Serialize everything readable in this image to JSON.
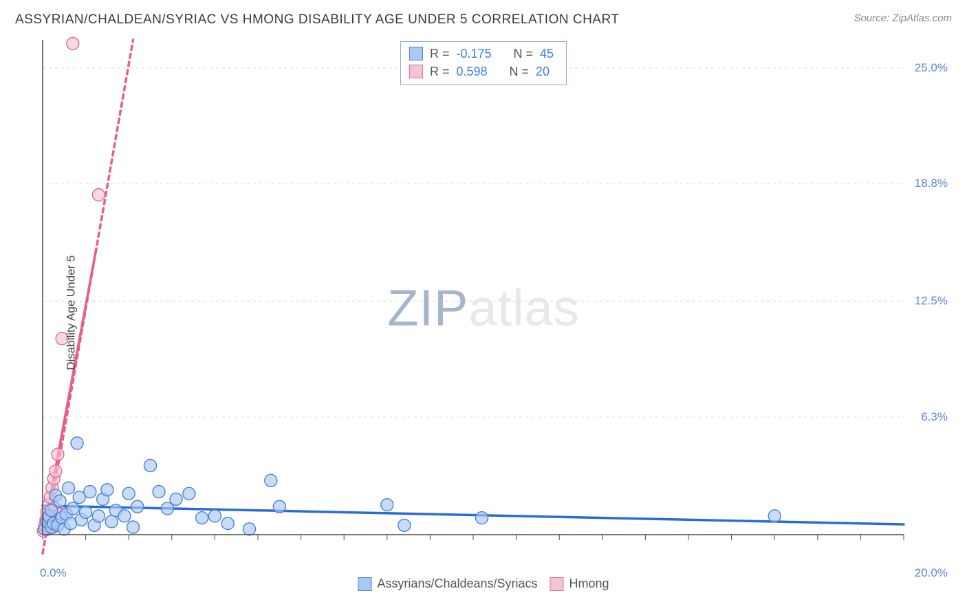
{
  "title": "ASSYRIAN/CHALDEAN/SYRIAC VS HMONG DISABILITY AGE UNDER 5 CORRELATION CHART",
  "source": "Source: ZipAtlas.com",
  "watermark": {
    "part1": "ZIP",
    "part2": "atlas"
  },
  "chart": {
    "type": "scatter",
    "background_color": "#ffffff",
    "grid_color": "#e0e0e0",
    "axis_color": "#4a4a4a",
    "tick_label_color": "#5b88d6",
    "ylabel": "Disability Age Under 5",
    "xlim": [
      0,
      20
    ],
    "ylim": [
      0,
      26.5
    ],
    "yticks": [
      {
        "v": 6.3,
        "label": "6.3%"
      },
      {
        "v": 12.5,
        "label": "12.5%"
      },
      {
        "v": 18.8,
        "label": "18.8%"
      },
      {
        "v": 25.0,
        "label": "25.0%"
      }
    ],
    "x_tick_min": "0.0%",
    "x_tick_max": "20.0%",
    "x_minor_step": 1.0,
    "series": {
      "a": {
        "label": "Assyrians/Chaldeans/Syriacs",
        "marker_color_fill": "#a9c9f2",
        "marker_color_stroke": "#4b7fd4",
        "marker_r": 9,
        "trend_color": "#2b6bd6",
        "trend_width": 3.5,
        "trend_dash": "none",
        "trend": {
          "x1": 0.0,
          "y1": 1.55,
          "x2": 20.0,
          "y2": 0.55
        },
        "points": [
          [
            0.05,
            0.3
          ],
          [
            0.1,
            0.7
          ],
          [
            0.15,
            1.0
          ],
          [
            0.2,
            0.4
          ],
          [
            0.2,
            1.3
          ],
          [
            0.25,
            0.6
          ],
          [
            0.3,
            2.1
          ],
          [
            0.35,
            0.5
          ],
          [
            0.4,
            1.8
          ],
          [
            0.45,
            0.9
          ],
          [
            0.5,
            0.3
          ],
          [
            0.55,
            1.1
          ],
          [
            0.6,
            2.5
          ],
          [
            0.65,
            0.6
          ],
          [
            0.7,
            1.4
          ],
          [
            0.8,
            4.9
          ],
          [
            0.85,
            2.0
          ],
          [
            0.9,
            0.8
          ],
          [
            1.0,
            1.2
          ],
          [
            1.1,
            2.3
          ],
          [
            1.2,
            0.5
          ],
          [
            1.3,
            1.0
          ],
          [
            1.4,
            1.9
          ],
          [
            1.5,
            2.4
          ],
          [
            1.6,
            0.7
          ],
          [
            1.7,
            1.3
          ],
          [
            1.9,
            1.0
          ],
          [
            2.0,
            2.2
          ],
          [
            2.1,
            0.4
          ],
          [
            2.2,
            1.5
          ],
          [
            2.5,
            3.7
          ],
          [
            2.7,
            2.3
          ],
          [
            2.9,
            1.4
          ],
          [
            3.1,
            1.9
          ],
          [
            3.4,
            2.2
          ],
          [
            3.7,
            0.9
          ],
          [
            4.0,
            1.0
          ],
          [
            4.3,
            0.6
          ],
          [
            4.8,
            0.3
          ],
          [
            5.3,
            2.9
          ],
          [
            5.5,
            1.5
          ],
          [
            8.0,
            1.6
          ],
          [
            8.4,
            0.5
          ],
          [
            10.2,
            0.9
          ],
          [
            17.0,
            1.0
          ]
        ]
      },
      "b": {
        "label": "Hmong",
        "marker_color_fill": "#f4c4d4",
        "marker_color_stroke": "#e06a93",
        "marker_r": 9,
        "trend_color": "#e75d8d",
        "trend_width": 3.5,
        "trend_dash": "6,6",
        "trend": {
          "x1": 0.0,
          "y1": -1.0,
          "x2": 2.1,
          "y2": 26.5
        },
        "points": [
          [
            0.02,
            0.2
          ],
          [
            0.05,
            0.5
          ],
          [
            0.08,
            0.8
          ],
          [
            0.1,
            1.2
          ],
          [
            0.12,
            0.3
          ],
          [
            0.14,
            1.6
          ],
          [
            0.16,
            0.6
          ],
          [
            0.18,
            2.0
          ],
          [
            0.2,
            0.9
          ],
          [
            0.22,
            2.5
          ],
          [
            0.24,
            0.4
          ],
          [
            0.26,
            3.0
          ],
          [
            0.28,
            1.4
          ],
          [
            0.3,
            3.4
          ],
          [
            0.32,
            0.7
          ],
          [
            0.35,
            4.3
          ],
          [
            0.4,
            1.1
          ],
          [
            0.45,
            10.5
          ],
          [
            1.3,
            18.2
          ],
          [
            0.7,
            26.3
          ]
        ]
      }
    },
    "stats_legend": [
      {
        "swatch_fill": "#a9c9f2",
        "swatch_stroke": "#4b7fd4",
        "r": "-0.175",
        "n": "45"
      },
      {
        "swatch_fill": "#f4c4d4",
        "swatch_stroke": "#e06a93",
        "r": "0.598",
        "n": "20"
      }
    ],
    "stats_labels": {
      "r": "R =",
      "n": "N ="
    }
  }
}
